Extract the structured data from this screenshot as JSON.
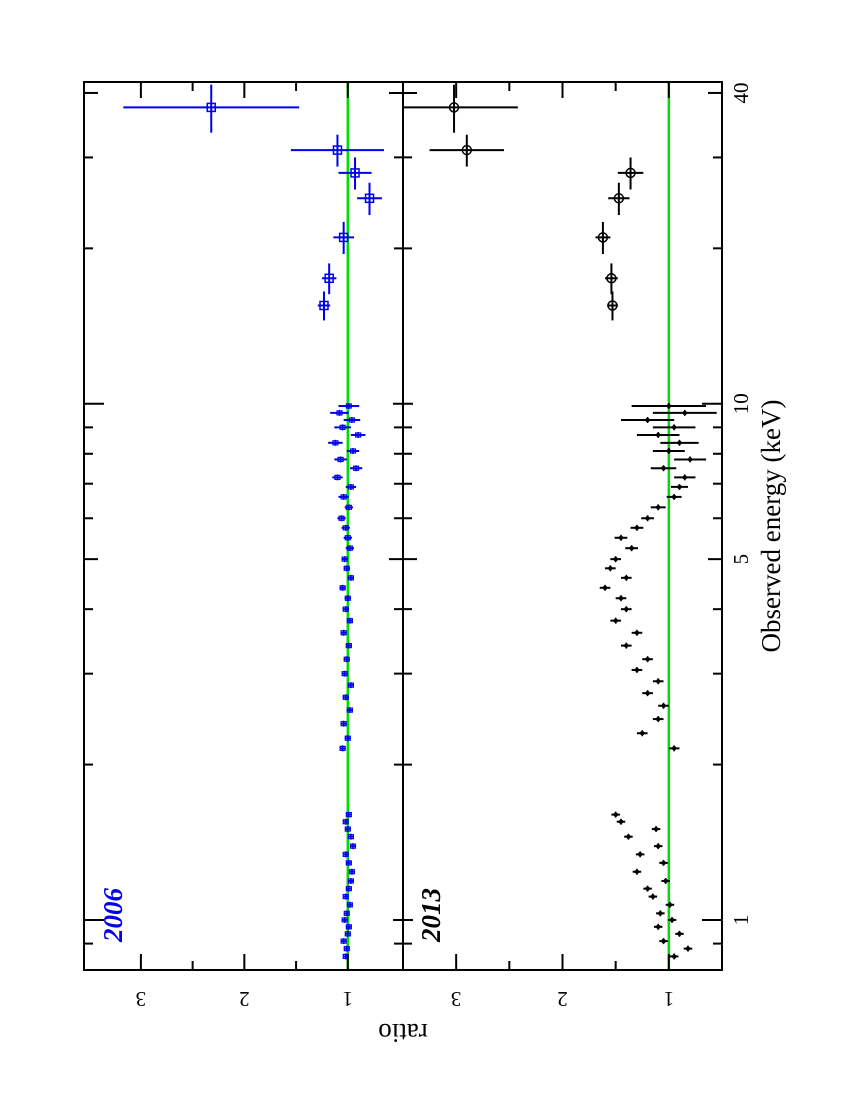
{
  "chart_data": {
    "type": "scatter",
    "orientation": "rotated-90",
    "xlabel": "Observed energy (keV)",
    "ylabel": "ratio",
    "xscale": "log",
    "xlim": [
      0.8,
      42
    ],
    "x_tick_labels": [
      "1",
      "5",
      "10",
      "40"
    ],
    "x_tick_values": [
      1,
      5,
      10,
      40
    ],
    "reference_line": {
      "y": 1,
      "color": "#00dd00"
    },
    "colors": {
      "2006": "#0000ee",
      "2013": "#000000",
      "reference": "#00dd00"
    },
    "panels": [
      {
        "label": "2006",
        "color": "#0000ee",
        "ylim": [
          0.65,
          3.55
        ],
        "y_tick_labels": [
          "1",
          "2",
          "3"
        ],
        "y_tick_values": [
          1,
          2,
          3
        ],
        "series": [
          {
            "marker": "small-square",
            "x": [
              0.85,
              0.88,
              0.91,
              0.94,
              0.97,
              1.0,
              1.03,
              1.07,
              1.11,
              1.15,
              1.19,
              1.24,
              1.29,
              1.34,
              1.39,
              1.45,
              1.5,
              1.55,
              1.6,
              2.15,
              2.25,
              2.4,
              2.55,
              2.7,
              2.85,
              3.0,
              3.2,
              3.4,
              3.6,
              3.8,
              4.0,
              4.2,
              4.4,
              4.6,
              4.8,
              5.0,
              5.25,
              5.5,
              5.75,
              6.0,
              6.3,
              6.6,
              6.9,
              7.2,
              7.5,
              7.8,
              8.1,
              8.4,
              8.7,
              9.0,
              9.3,
              9.6,
              9.9
            ],
            "y": [
              1.02,
              1.01,
              1.04,
              1.0,
              0.99,
              1.03,
              1.01,
              0.98,
              1.02,
              0.99,
              0.97,
              0.96,
              0.99,
              1.02,
              0.95,
              0.97,
              1.0,
              1.02,
              0.99,
              1.05,
              1.0,
              1.04,
              0.98,
              1.02,
              0.97,
              1.03,
              1.01,
              0.99,
              1.04,
              0.98,
              1.02,
              1.0,
              1.05,
              0.97,
              1.01,
              1.03,
              0.98,
              1.0,
              1.02,
              1.06,
              0.99,
              1.04,
              0.97,
              1.1,
              0.92,
              1.07,
              0.95,
              1.12,
              0.9,
              1.05,
              0.96,
              1.08,
              0.99
            ],
            "yerr": [
              0.02,
              0.02,
              0.02,
              0.02,
              0.02,
              0.02,
              0.02,
              0.02,
              0.02,
              0.02,
              0.02,
              0.02,
              0.02,
              0.02,
              0.02,
              0.02,
              0.02,
              0.02,
              0.02,
              0.03,
              0.03,
              0.03,
              0.03,
              0.03,
              0.03,
              0.03,
              0.03,
              0.03,
              0.03,
              0.03,
              0.03,
              0.03,
              0.03,
              0.03,
              0.03,
              0.03,
              0.04,
              0.04,
              0.04,
              0.04,
              0.04,
              0.05,
              0.05,
              0.05,
              0.06,
              0.06,
              0.06,
              0.07,
              0.07,
              0.08,
              0.08,
              0.09,
              0.1
            ]
          },
          {
            "marker": "open-square",
            "x": [
              15.5,
              17.5,
              21.0,
              25.0,
              28.0,
              31.0,
              37.5
            ],
            "y": [
              1.23,
              1.18,
              1.04,
              0.79,
              0.93,
              1.1,
              2.32
            ],
            "xerr": [
              1.0,
              1.2,
              1.5,
              1.8,
              2.0,
              2.2,
              4.0
            ],
            "yerr": [
              0.06,
              0.07,
              0.1,
              0.12,
              0.16,
              0.45,
              0.85
            ]
          }
        ]
      },
      {
        "label": "2013",
        "color": "#000000",
        "ylim": [
          0.5,
          3.5
        ],
        "y_tick_labels": [
          "3",
          "2",
          "1"
        ],
        "y_tick_values": [
          3,
          2,
          1
        ],
        "series": [
          {
            "marker": "small-diamond",
            "x": [
              0.85,
              0.88,
              0.91,
              0.94,
              0.97,
              1.0,
              1.03,
              1.07,
              1.11,
              1.15,
              1.19,
              1.24,
              1.29,
              1.34,
              1.39,
              1.45,
              1.5,
              1.55,
              1.6,
              2.15,
              2.3,
              2.45,
              2.6,
              2.75,
              2.9,
              3.05,
              3.2,
              3.4,
              3.6,
              3.8,
              4.0,
              4.2,
              4.4,
              4.6,
              4.8,
              5.0,
              5.25,
              5.5,
              5.75,
              6.0,
              6.3,
              6.6,
              6.9,
              7.2,
              7.5,
              7.8,
              8.1,
              8.4,
              8.7,
              9.0,
              9.3,
              9.6,
              9.9
            ],
            "y": [
              0.95,
              0.82,
              1.05,
              0.9,
              1.1,
              0.97,
              1.08,
              0.99,
              1.15,
              1.2,
              1.03,
              1.3,
              1.05,
              1.27,
              1.1,
              1.38,
              1.12,
              1.45,
              1.5,
              0.95,
              1.25,
              1.1,
              1.05,
              1.2,
              1.1,
              1.3,
              1.2,
              1.4,
              1.3,
              1.5,
              1.4,
              1.45,
              1.6,
              1.4,
              1.55,
              1.5,
              1.35,
              1.45,
              1.3,
              1.2,
              1.1,
              0.95,
              0.9,
              0.85,
              1.05,
              0.8,
              1.0,
              0.9,
              1.1,
              0.95,
              1.2,
              0.85,
              1.0
            ],
            "yerr": [
              0.04,
              0.04,
              0.04,
              0.04,
              0.04,
              0.04,
              0.04,
              0.04,
              0.04,
              0.04,
              0.04,
              0.04,
              0.04,
              0.04,
              0.04,
              0.04,
              0.04,
              0.04,
              0.04,
              0.05,
              0.05,
              0.05,
              0.05,
              0.05,
              0.05,
              0.05,
              0.05,
              0.05,
              0.05,
              0.05,
              0.05,
              0.05,
              0.05,
              0.05,
              0.05,
              0.05,
              0.06,
              0.06,
              0.06,
              0.06,
              0.07,
              0.07,
              0.08,
              0.1,
              0.12,
              0.15,
              0.15,
              0.18,
              0.2,
              0.2,
              0.25,
              0.3,
              0.35
            ]
          },
          {
            "marker": "open-circle",
            "x": [
              15.5,
              17.5,
              21.0,
              25.0,
              28.0,
              31.0,
              37.5
            ],
            "y": [
              1.53,
              1.54,
              1.62,
              1.47,
              1.36,
              2.9,
              3.02
            ],
            "xerr": [
              1.0,
              1.2,
              1.5,
              1.8,
              2.0,
              2.2,
              4.0
            ],
            "yerr": [
              0.05,
              0.06,
              0.07,
              0.1,
              0.12,
              0.35,
              0.6
            ]
          }
        ]
      }
    ]
  }
}
